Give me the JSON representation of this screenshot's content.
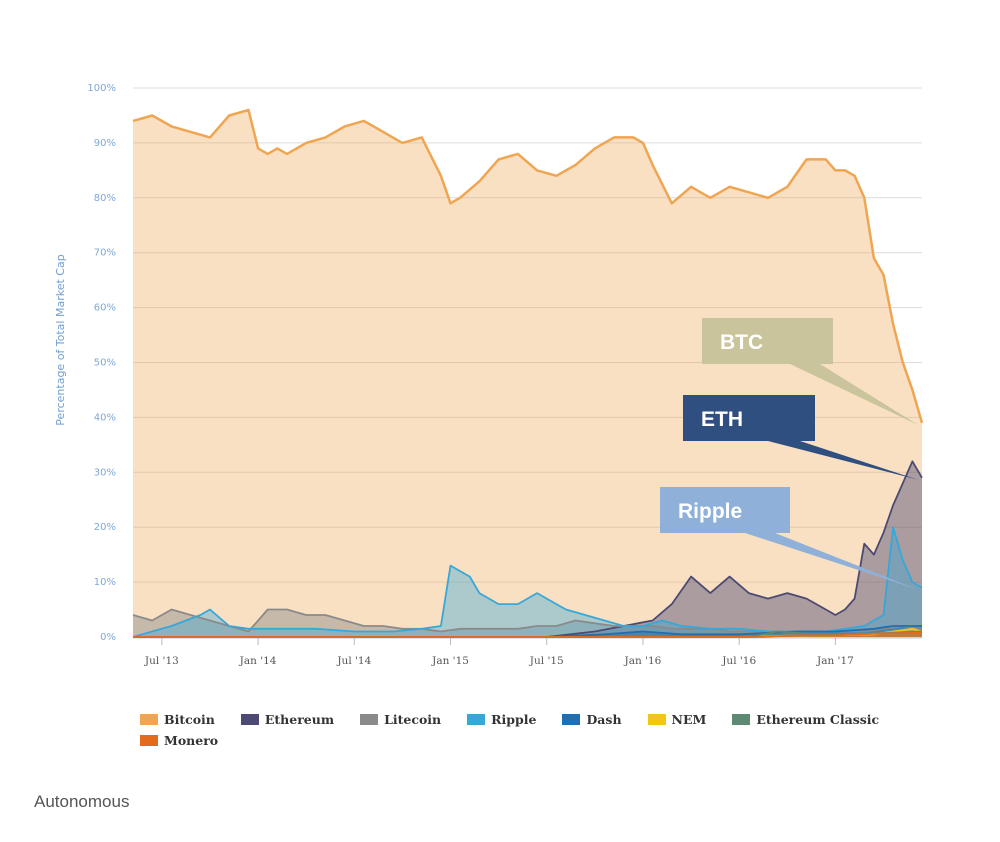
{
  "chart_data": {
    "type": "area",
    "ylabel": "Percentage of Total Market Cap",
    "ylim": [
      0,
      100
    ],
    "yticks": [
      "100%",
      "90%",
      "80%",
      "70%",
      "60%",
      "50%",
      "40%",
      "30%",
      "20%",
      "10%",
      "0%"
    ],
    "xticks": [
      "Jul '13",
      "Jan '14",
      "Jul '14",
      "Jan '15",
      "Jul '15",
      "Jan '16",
      "Jul '16",
      "Jan '17"
    ],
    "xrange": [
      "2013-05",
      "2017-06"
    ],
    "grid": true,
    "legend_position": "bottom",
    "series": [
      {
        "name": "Bitcoin",
        "color": "#f0a552",
        "x": [
          2013.35,
          2013.45,
          2013.55,
          2013.65,
          2013.75,
          2013.85,
          2013.95,
          2014.0,
          2014.05,
          2014.1,
          2014.15,
          2014.25,
          2014.35,
          2014.45,
          2014.55,
          2014.65,
          2014.75,
          2014.85,
          2014.95,
          2015.0,
          2015.05,
          2015.15,
          2015.25,
          2015.35,
          2015.45,
          2015.55,
          2015.65,
          2015.75,
          2015.85,
          2015.95,
          2016.0,
          2016.05,
          2016.15,
          2016.25,
          2016.35,
          2016.45,
          2016.55,
          2016.65,
          2016.75,
          2016.85,
          2016.95,
          2017.0,
          2017.05,
          2017.1,
          2017.15,
          2017.2,
          2017.25,
          2017.3,
          2017.35,
          2017.4,
          2017.45
        ],
        "values": [
          94,
          95,
          93,
          92,
          91,
          95,
          96,
          89,
          88,
          89,
          88,
          90,
          91,
          93,
          94,
          92,
          90,
          91,
          84,
          79,
          80,
          83,
          87,
          88,
          85,
          84,
          86,
          89,
          91,
          91,
          90,
          86,
          79,
          82,
          80,
          82,
          81,
          80,
          82,
          87,
          87,
          85,
          85,
          84,
          80,
          69,
          66,
          57,
          50,
          45,
          39
        ]
      },
      {
        "name": "Ethereum",
        "color": "#4c4a73",
        "x": [
          2013.35,
          2015.5,
          2015.75,
          2015.9,
          2016.05,
          2016.15,
          2016.25,
          2016.35,
          2016.45,
          2016.55,
          2016.65,
          2016.75,
          2016.85,
          2016.95,
          2017.0,
          2017.05,
          2017.1,
          2017.15,
          2017.2,
          2017.25,
          2017.3,
          2017.35,
          2017.4,
          2017.45
        ],
        "values": [
          0,
          0,
          1,
          2,
          3,
          6,
          11,
          8,
          11,
          8,
          7,
          8,
          7,
          5,
          4,
          5,
          7,
          17,
          15,
          19,
          24,
          28,
          32,
          29
        ]
      },
      {
        "name": "Litecoin",
        "color": "#8a8a8a",
        "x": [
          2013.35,
          2013.45,
          2013.55,
          2013.65,
          2013.75,
          2013.85,
          2013.95,
          2014.05,
          2014.15,
          2014.25,
          2014.35,
          2014.45,
          2014.55,
          2014.65,
          2014.75,
          2014.85,
          2014.95,
          2015.05,
          2015.15,
          2015.25,
          2015.35,
          2015.45,
          2015.55,
          2015.65,
          2015.75,
          2015.85,
          2015.95,
          2016.05,
          2016.15,
          2016.25,
          2016.35,
          2016.45,
          2016.55,
          2016.65,
          2016.75,
          2016.85,
          2016.95,
          2017.05,
          2017.15,
          2017.25,
          2017.35,
          2017.45
        ],
        "values": [
          4,
          3,
          5,
          4,
          3,
          2,
          1,
          5,
          5,
          4,
          4,
          3,
          2,
          2,
          1.5,
          1.5,
          1,
          1.5,
          1.5,
          1.5,
          1.5,
          2,
          2,
          3,
          2.5,
          2,
          2,
          2,
          1.5,
          1.5,
          1.5,
          1,
          1,
          1,
          1,
          1,
          1,
          1,
          1,
          1.5,
          2,
          1.5
        ]
      },
      {
        "name": "Ripple",
        "color": "#37a7d8",
        "x": [
          2013.35,
          2013.55,
          2013.7,
          2013.75,
          2013.85,
          2013.95,
          2014.1,
          2014.3,
          2014.5,
          2014.7,
          2014.85,
          2014.95,
          2015.0,
          2015.05,
          2015.1,
          2015.15,
          2015.2,
          2015.25,
          2015.35,
          2015.45,
          2015.55,
          2015.6,
          2015.7,
          2015.8,
          2015.9,
          2016.0,
          2016.1,
          2016.2,
          2016.35,
          2016.5,
          2016.65,
          2016.8,
          2016.95,
          2017.05,
          2017.15,
          2017.25,
          2017.3,
          2017.35,
          2017.4,
          2017.45
        ],
        "values": [
          0,
          2,
          4,
          5,
          2,
          1.5,
          1.5,
          1.5,
          1,
          1,
          1.5,
          2,
          13,
          12,
          11,
          8,
          7,
          6,
          6,
          8,
          6,
          5,
          4,
          3,
          2,
          2,
          3,
          2,
          1.5,
          1.5,
          1,
          1,
          1,
          1.5,
          2,
          4,
          20,
          14,
          10,
          9
        ]
      },
      {
        "name": "Dash",
        "color": "#1f6fb2",
        "x": [
          2013.35,
          2015.5,
          2015.8,
          2016.0,
          2016.2,
          2016.5,
          2016.8,
          2017.0,
          2017.2,
          2017.3,
          2017.45
        ],
        "values": [
          0,
          0,
          0.5,
          1,
          0.5,
          0.5,
          1,
          1,
          1.5,
          2,
          2
        ]
      },
      {
        "name": "NEM",
        "color": "#f2c518",
        "x": [
          2013.35,
          2016.5,
          2016.8,
          2017.0,
          2017.2,
          2017.3,
          2017.4,
          2017.45
        ],
        "values": [
          0,
          0,
          0.3,
          0.3,
          0.5,
          1,
          1.5,
          1
        ]
      },
      {
        "name": "Ethereum Classic",
        "color": "#5e8a74",
        "x": [
          2013.35,
          2016.55,
          2016.7,
          2016.9,
          2017.1,
          2017.3,
          2017.45
        ],
        "values": [
          0,
          0,
          1,
          0.5,
          0.5,
          0.8,
          1
        ]
      },
      {
        "name": "Monero",
        "color": "#e46a1c",
        "x": [
          2013.35,
          2016.6,
          2016.8,
          2017.0,
          2017.2,
          2017.45
        ],
        "values": [
          0,
          0,
          0.3,
          0.3,
          0.6,
          0.8
        ]
      }
    ],
    "annotations": [
      {
        "text": "BTC",
        "color": "#c9c49b",
        "points_to": "Bitcoin"
      },
      {
        "text": "ETH",
        "color": "#2e4f80",
        "points_to": "Ethereum"
      },
      {
        "text": "Ripple",
        "color": "#8fb1d9",
        "points_to": "Ripple"
      }
    ]
  },
  "source_label": "Autonomous"
}
